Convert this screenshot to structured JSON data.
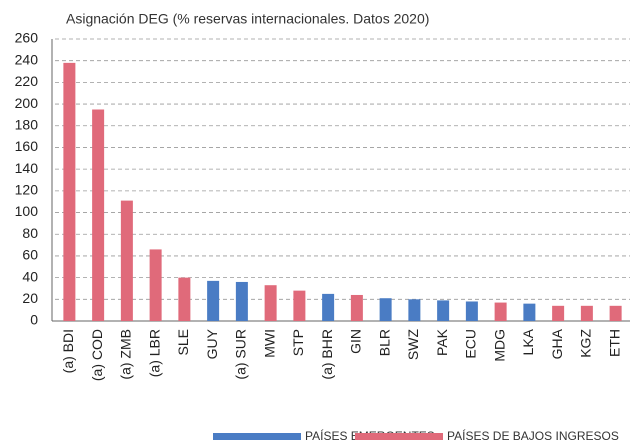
{
  "chart_data": {
    "type": "bar",
    "title": "Asignación DEG (% reservas internacionales. Datos 2020)",
    "categories": [
      "(a) BDI",
      "(a) COD",
      "(a) ZMB",
      "(a) LBR",
      "SLE",
      "GUY",
      "(a) SUR",
      "MWI",
      "STP",
      "(a) BHR",
      "GIN",
      "BLR",
      "SWZ",
      "PAK",
      "ECU",
      "MDG",
      "LKA",
      "GHA",
      "KGZ",
      "ETH"
    ],
    "series": [
      {
        "name": "PAÍSES EMERGENTES",
        "color": "#4a7cc4",
        "values": [
          null,
          null,
          null,
          null,
          null,
          37,
          36,
          null,
          null,
          25,
          null,
          21,
          20,
          19,
          18,
          null,
          16,
          null,
          null,
          null
        ]
      },
      {
        "name": "PAÍSES DE BAJOS INGRESOS",
        "color": "#e06a7a",
        "values": [
          238,
          195,
          111,
          66,
          40,
          null,
          null,
          33,
          28,
          null,
          24,
          null,
          null,
          null,
          null,
          17,
          null,
          14,
          14,
          14
        ]
      }
    ],
    "ylim": [
      0,
      260
    ],
    "yticks": [
      0,
      20,
      40,
      60,
      80,
      100,
      120,
      140,
      160,
      180,
      200,
      220,
      240,
      260
    ],
    "grid": true,
    "legend": "bottom"
  }
}
